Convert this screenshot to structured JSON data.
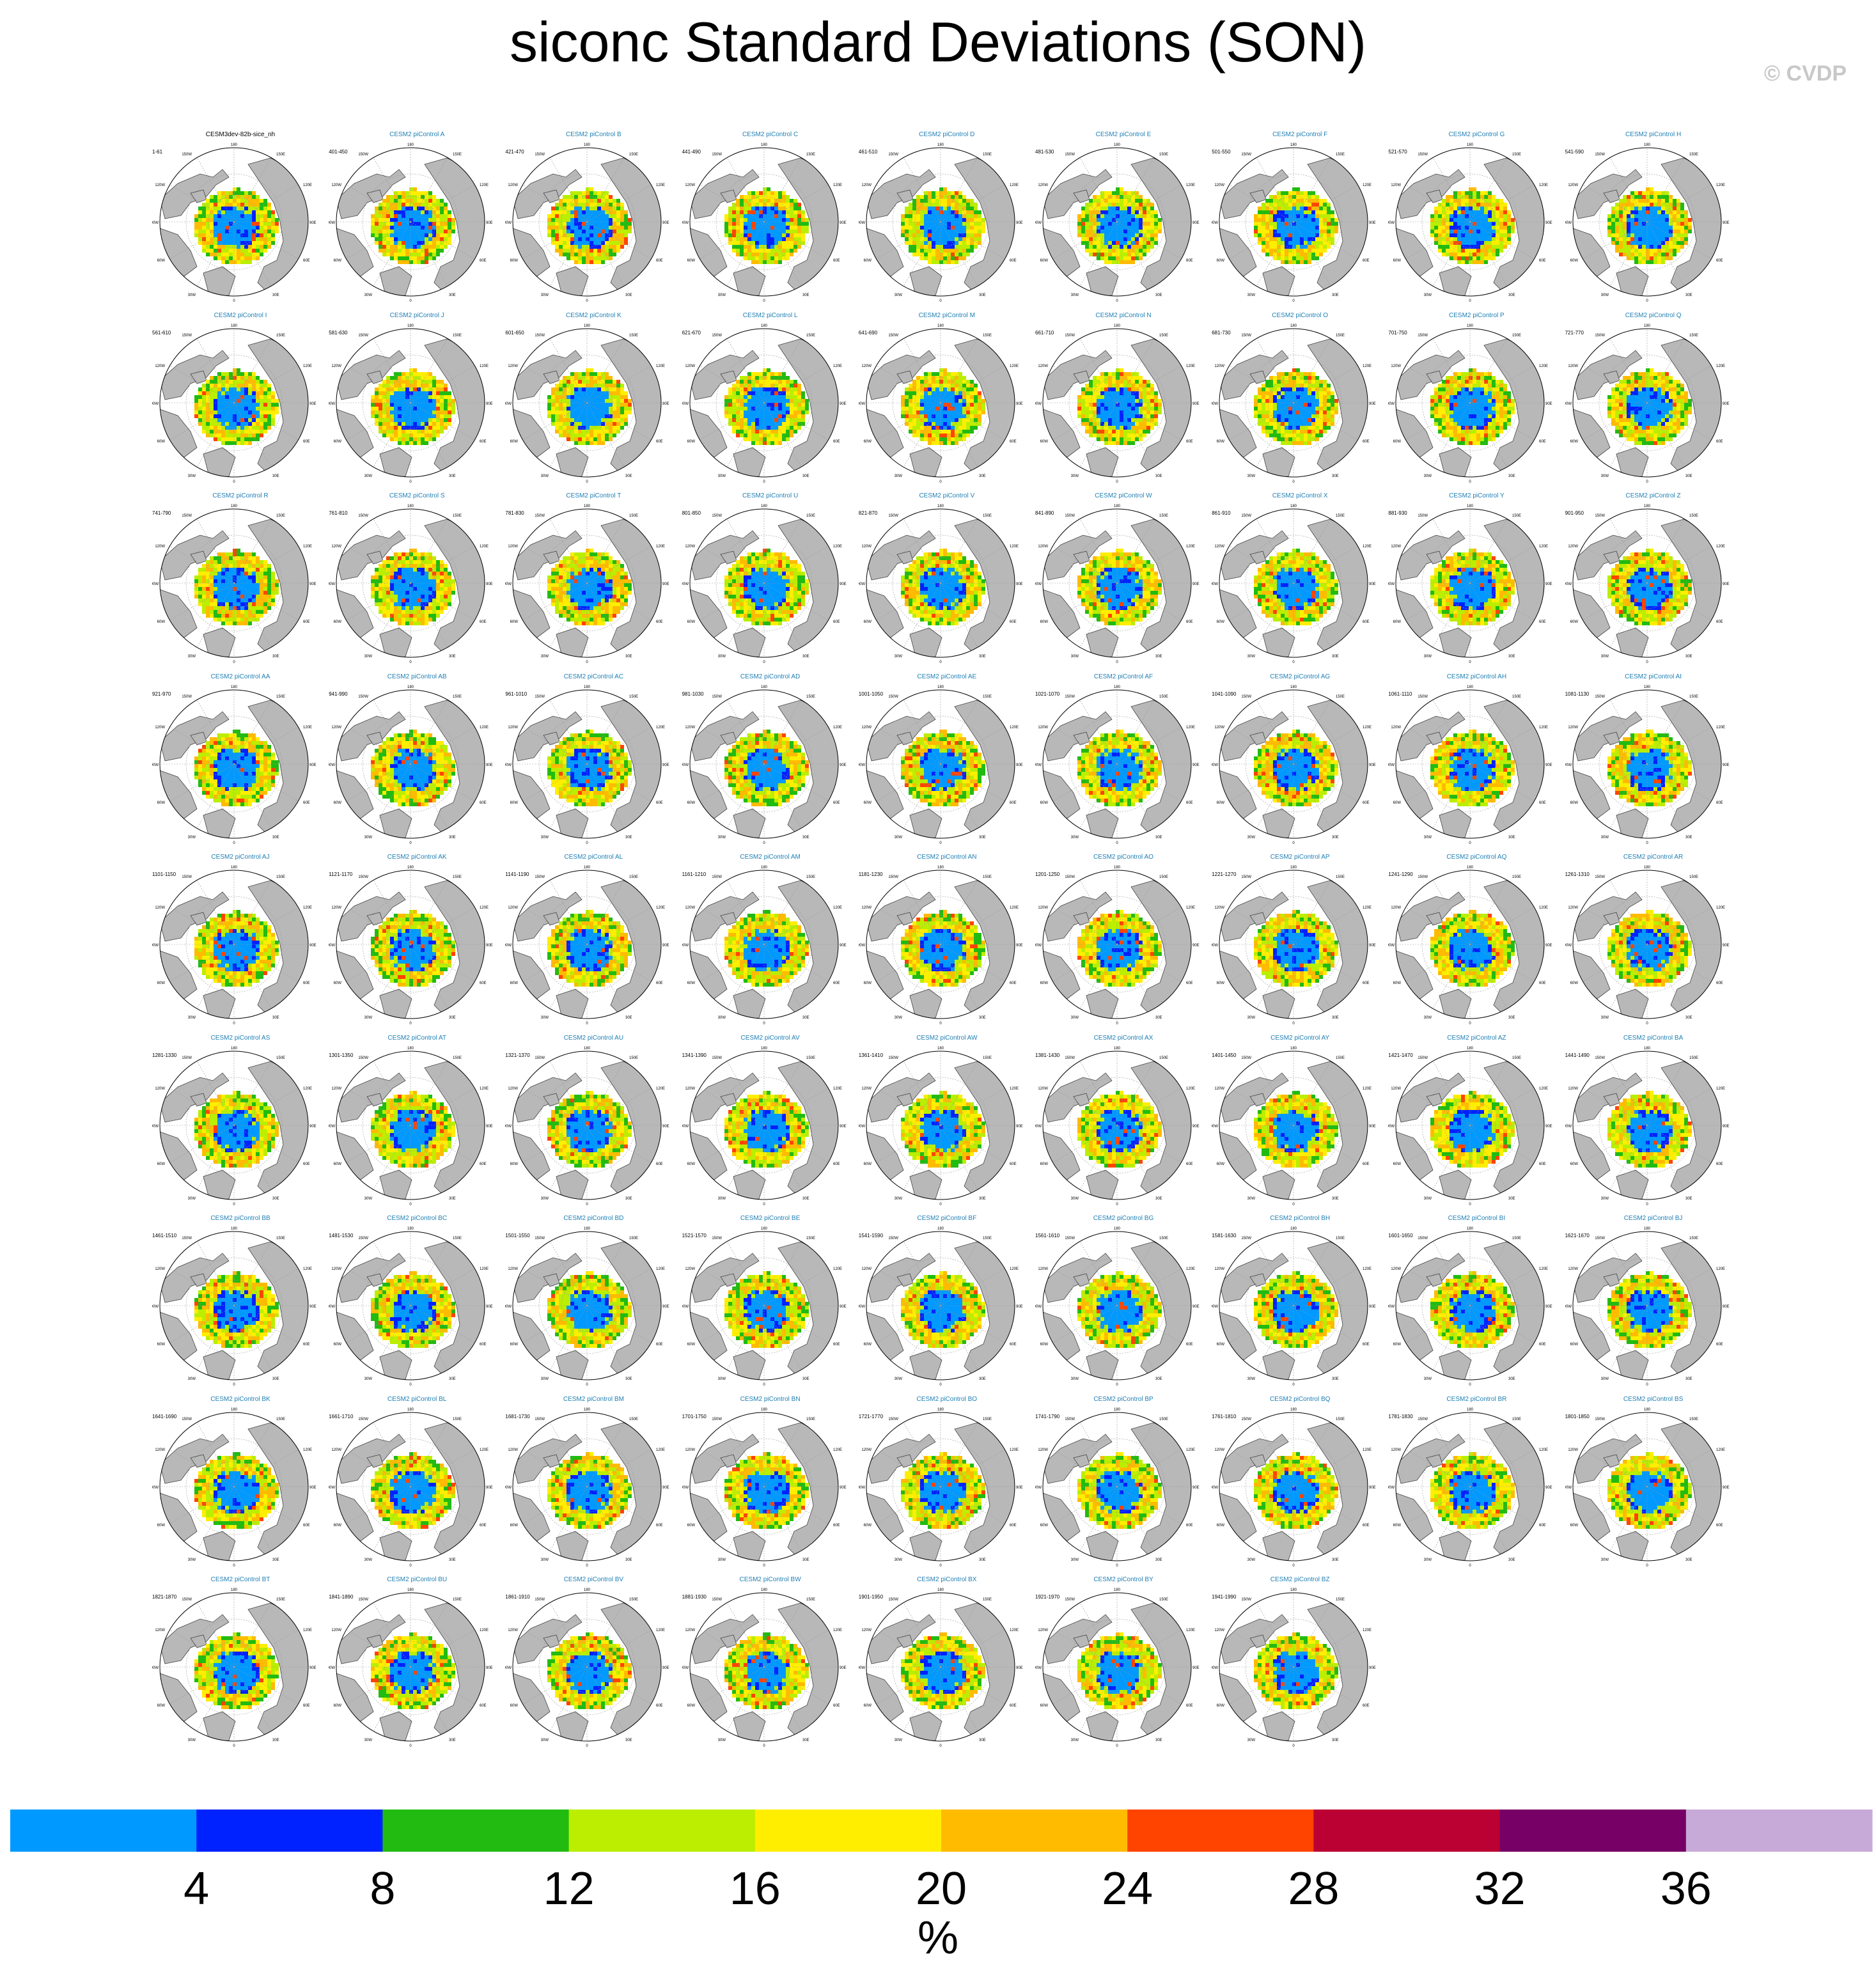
{
  "title": "siconc Standard Deviations (SON)",
  "watermark": "© CVDP",
  "units": "%",
  "colorbar": {
    "ticks": [
      "4",
      "8",
      "12",
      "16",
      "20",
      "24",
      "28",
      "32",
      "36"
    ],
    "colors": [
      "#0099ff",
      "#0022ff",
      "#22bb11",
      "#bbee00",
      "#ffee00",
      "#ffbb00",
      "#ff4400",
      "#bb0033",
      "#770066",
      "#c8aad8"
    ]
  },
  "map_labels": {
    "top": "180",
    "left": "90W",
    "right": "90E",
    "bottom": "0",
    "ul": "150W",
    "ur": "150E",
    "ml": "120W",
    "mr": "120E",
    "ll": "60W",
    "lr": "60E",
    "bl": "30W",
    "br": "30E"
  },
  "chart_data": {
    "type": "heatmap",
    "title": "siconc Standard Deviations (SON)",
    "colorbar_label": "%",
    "levels": [
      4,
      8,
      12,
      16,
      20,
      24,
      28,
      32,
      36
    ],
    "projection": "north-polar-stereographic",
    "panels": [
      {
        "title": "CESM3dev-82b-sice_nh",
        "years": "1-61"
      },
      {
        "title": "CESM2 piControl A",
        "years": "401-450"
      },
      {
        "title": "CESM2 piControl B",
        "years": "421-470"
      },
      {
        "title": "CESM2 piControl C",
        "years": "441-490"
      },
      {
        "title": "CESM2 piControl D",
        "years": "461-510"
      },
      {
        "title": "CESM2 piControl E",
        "years": "481-530"
      },
      {
        "title": "CESM2 piControl F",
        "years": "501-550"
      },
      {
        "title": "CESM2 piControl G",
        "years": "521-570"
      },
      {
        "title": "CESM2 piControl H",
        "years": "541-590"
      },
      {
        "title": "CESM2 piControl I",
        "years": "561-610"
      },
      {
        "title": "CESM2 piControl J",
        "years": "581-630"
      },
      {
        "title": "CESM2 piControl K",
        "years": "601-650"
      },
      {
        "title": "CESM2 piControl L",
        "years": "621-670"
      },
      {
        "title": "CESM2 piControl M",
        "years": "641-690"
      },
      {
        "title": "CESM2 piControl N",
        "years": "661-710"
      },
      {
        "title": "CESM2 piControl O",
        "years": "681-730"
      },
      {
        "title": "CESM2 piControl P",
        "years": "701-750"
      },
      {
        "title": "CESM2 piControl Q",
        "years": "721-770"
      },
      {
        "title": "CESM2 piControl R",
        "years": "741-790"
      },
      {
        "title": "CESM2 piControl S",
        "years": "761-810"
      },
      {
        "title": "CESM2 piControl T",
        "years": "781-830"
      },
      {
        "title": "CESM2 piControl U",
        "years": "801-850"
      },
      {
        "title": "CESM2 piControl V",
        "years": "821-870"
      },
      {
        "title": "CESM2 piControl W",
        "years": "841-890"
      },
      {
        "title": "CESM2 piControl X",
        "years": "861-910"
      },
      {
        "title": "CESM2 piControl Y",
        "years": "881-930"
      },
      {
        "title": "CESM2 piControl Z",
        "years": "901-950"
      },
      {
        "title": "CESM2 piControl AA",
        "years": "921-970"
      },
      {
        "title": "CESM2 piControl AB",
        "years": "941-990"
      },
      {
        "title": "CESM2 piControl AC",
        "years": "961-1010"
      },
      {
        "title": "CESM2 piControl AD",
        "years": "981-1030"
      },
      {
        "title": "CESM2 piControl AE",
        "years": "1001-1050"
      },
      {
        "title": "CESM2 piControl AF",
        "years": "1021-1070"
      },
      {
        "title": "CESM2 piControl AG",
        "years": "1041-1090"
      },
      {
        "title": "CESM2 piControl AH",
        "years": "1061-1110"
      },
      {
        "title": "CESM2 piControl AI",
        "years": "1081-1130"
      },
      {
        "title": "CESM2 piControl AJ",
        "years": "1101-1150"
      },
      {
        "title": "CESM2 piControl AK",
        "years": "1121-1170"
      },
      {
        "title": "CESM2 piControl AL",
        "years": "1141-1190"
      },
      {
        "title": "CESM2 piControl AM",
        "years": "1161-1210"
      },
      {
        "title": "CESM2 piControl AN",
        "years": "1181-1230"
      },
      {
        "title": "CESM2 piControl AO",
        "years": "1201-1250"
      },
      {
        "title": "CESM2 piControl AP",
        "years": "1221-1270"
      },
      {
        "title": "CESM2 piControl AQ",
        "years": "1241-1290"
      },
      {
        "title": "CESM2 piControl AR",
        "years": "1261-1310"
      },
      {
        "title": "CESM2 piControl AS",
        "years": "1281-1330"
      },
      {
        "title": "CESM2 piControl AT",
        "years": "1301-1350"
      },
      {
        "title": "CESM2 piControl AU",
        "years": "1321-1370"
      },
      {
        "title": "CESM2 piControl AV",
        "years": "1341-1390"
      },
      {
        "title": "CESM2 piControl AW",
        "years": "1361-1410"
      },
      {
        "title": "CESM2 piControl AX",
        "years": "1381-1430"
      },
      {
        "title": "CESM2 piControl AY",
        "years": "1401-1450"
      },
      {
        "title": "CESM2 piControl AZ",
        "years": "1421-1470"
      },
      {
        "title": "CESM2 piControl BA",
        "years": "1441-1490"
      },
      {
        "title": "CESM2 piControl BB",
        "years": "1461-1510"
      },
      {
        "title": "CESM2 piControl BC",
        "years": "1481-1530"
      },
      {
        "title": "CESM2 piControl BD",
        "years": "1501-1550"
      },
      {
        "title": "CESM2 piControl BE",
        "years": "1521-1570"
      },
      {
        "title": "CESM2 piControl BF",
        "years": "1541-1590"
      },
      {
        "title": "CESM2 piControl BG",
        "years": "1561-1610"
      },
      {
        "title": "CESM2 piControl BH",
        "years": "1581-1630"
      },
      {
        "title": "CESM2 piControl BI",
        "years": "1601-1650"
      },
      {
        "title": "CESM2 piControl BJ",
        "years": "1621-1670"
      },
      {
        "title": "CESM2 piControl BK",
        "years": "1641-1690"
      },
      {
        "title": "CESM2 piControl BL",
        "years": "1661-1710"
      },
      {
        "title": "CESM2 piControl BM",
        "years": "1681-1730"
      },
      {
        "title": "CESM2 piControl BN",
        "years": "1701-1750"
      },
      {
        "title": "CESM2 piControl BO",
        "years": "1721-1770"
      },
      {
        "title": "CESM2 piControl BP",
        "years": "1741-1790"
      },
      {
        "title": "CESM2 piControl BQ",
        "years": "1761-1810"
      },
      {
        "title": "CESM2 piControl BR",
        "years": "1781-1830"
      },
      {
        "title": "CESM2 piControl BS",
        "years": "1801-1850"
      },
      {
        "title": "CESM2 piControl BT",
        "years": "1821-1870"
      },
      {
        "title": "CESM2 piControl BU",
        "years": "1841-1890"
      },
      {
        "title": "CESM2 piControl BV",
        "years": "1861-1910"
      },
      {
        "title": "CESM2 piControl BW",
        "years": "1881-1930"
      },
      {
        "title": "CESM2 piControl BX",
        "years": "1901-1950"
      },
      {
        "title": "CESM2 piControl BY",
        "years": "1921-1970"
      },
      {
        "title": "CESM2 piControl BZ",
        "years": "1941-1990"
      }
    ]
  }
}
